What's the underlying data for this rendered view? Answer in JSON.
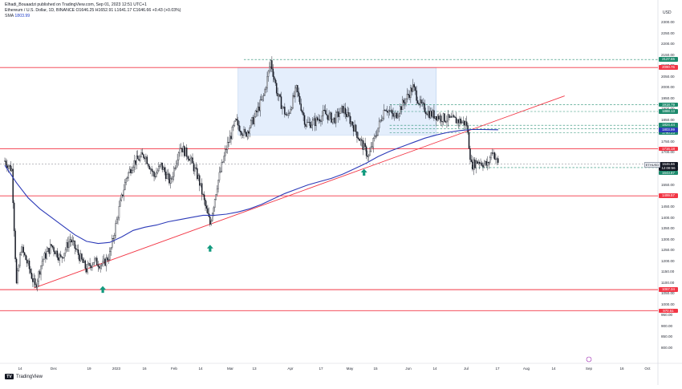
{
  "header": {
    "publisher": "Elhadi_Bouaadzi published on TradingView.com, Sep 01, 2023 12:51 UTC+1",
    "instrument": "Ethereum / U.S. Dollar, 1D, BINANCE  O1646.25  H1652.91  L1641.17  C1646.66  +0.43 (+0.03%)",
    "indicator_label": "SMA",
    "indicator_value": "1803.99"
  },
  "footer": {
    "logo_text": "TradingView",
    "logo_mark": "TV"
  },
  "axis_currency": "USD",
  "symbol_tag": "ETHUSD",
  "colors": {
    "candle": "#131722",
    "support_line": "#f23645",
    "trendline": "#f23645",
    "sma": "#2c3ab8",
    "range_box": "#dbe8fb",
    "target_lines": "#1c8a6c",
    "arrow": "#119a7e",
    "price_dashed": "#787b86"
  },
  "chart_data": {
    "type": "candlestick",
    "ylim": [
      750,
      2350
    ],
    "y_ticks": [
      800,
      850,
      900,
      950,
      1000,
      1050,
      1100,
      1150,
      1200,
      1250,
      1300,
      1350,
      1400,
      1450,
      1500,
      1550,
      1600,
      1650,
      1700,
      1750,
      1800,
      1850,
      1900,
      1950,
      2000,
      2050,
      2100,
      2150,
      2200,
      2250,
      2300
    ],
    "x_ticks": [
      "14",
      "Dec",
      "19",
      "2023",
      "16",
      "Feb",
      "14",
      "Mar",
      "13",
      "Apr",
      "17",
      "May",
      "15",
      "Jun",
      "14",
      "Jul",
      "17",
      "Aug",
      "14",
      "Sep",
      "16",
      "Oct"
    ],
    "horizontal_levels": [
      {
        "value": 2090.76,
        "label": "2090.76",
        "style": "solid",
        "color": "#f23645"
      },
      {
        "value": 1716.18,
        "label": "1716.18",
        "style": "solid",
        "color": "#f23645"
      },
      {
        "value": 1499.57,
        "label": "1499.57",
        "style": "solid",
        "color": "#f23645"
      },
      {
        "value": 1067.34,
        "label": "1067.34",
        "style": "solid",
        "color": "#f23645"
      },
      {
        "value": 970.51,
        "label": "970.51",
        "style": "solid",
        "color": "#f23645"
      }
    ],
    "target_levels": [
      {
        "value": 2127.65,
        "label": "2127.65"
      },
      {
        "value": 1918.79,
        "label": "1918.79"
      },
      {
        "value": 1888.13,
        "label": "1888.13"
      },
      {
        "value": 1824.44,
        "label": "1824.44"
      },
      {
        "value": 1809.37,
        "label": "1809.37"
      },
      {
        "value": 1790.23,
        "label": "1790.23"
      },
      {
        "value": 1629.82,
        "label": "1629.82"
      }
    ],
    "current_price": {
      "value": 1646.66,
      "label": "1646.66",
      "countdown": "12:08:56",
      "secondary": "1643.87"
    },
    "sma_label": {
      "value": 1803.99,
      "label": "1803.99"
    },
    "range_box": {
      "top": 2090,
      "bottom": 1780,
      "from_index": 200,
      "to_index": 370
    },
    "trendline": {
      "from": {
        "index": 25,
        "value": 1075
      },
      "to": {
        "index": 480,
        "value": 1960
      }
    },
    "arrows_up_index": [
      84,
      176,
      308
    ],
    "anchors": [
      [
        0,
        1660
      ],
      [
        6,
        1620
      ],
      [
        10,
        1090
      ],
      [
        14,
        1260
      ],
      [
        20,
        1180
      ],
      [
        26,
        1080
      ],
      [
        32,
        1200
      ],
      [
        40,
        1270
      ],
      [
        48,
        1210
      ],
      [
        56,
        1300
      ],
      [
        64,
        1220
      ],
      [
        70,
        1160
      ],
      [
        76,
        1200
      ],
      [
        84,
        1180
      ],
      [
        90,
        1230
      ],
      [
        98,
        1440
      ],
      [
        104,
        1580
      ],
      [
        110,
        1650
      ],
      [
        120,
        1690
      ],
      [
        128,
        1590
      ],
      [
        134,
        1640
      ],
      [
        142,
        1560
      ],
      [
        150,
        1730
      ],
      [
        158,
        1680
      ],
      [
        166,
        1580
      ],
      [
        172,
        1450
      ],
      [
        176,
        1370
      ],
      [
        182,
        1550
      ],
      [
        190,
        1720
      ],
      [
        198,
        1840
      ],
      [
        206,
        1780
      ],
      [
        214,
        1860
      ],
      [
        222,
        1960
      ],
      [
        228,
        2120
      ],
      [
        234,
        1960
      ],
      [
        242,
        1860
      ],
      [
        250,
        1990
      ],
      [
        258,
        1830
      ],
      [
        266,
        1840
      ],
      [
        274,
        1880
      ],
      [
        282,
        1850
      ],
      [
        290,
        1900
      ],
      [
        298,
        1830
      ],
      [
        306,
        1740
      ],
      [
        312,
        1680
      ],
      [
        318,
        1780
      ],
      [
        326,
        1910
      ],
      [
        334,
        1860
      ],
      [
        342,
        1930
      ],
      [
        350,
        2000
      ],
      [
        356,
        1920
      ],
      [
        364,
        1880
      ],
      [
        374,
        1860
      ],
      [
        382,
        1850
      ],
      [
        390,
        1845
      ],
      [
        396,
        1830
      ],
      [
        400,
        1640
      ],
      [
        406,
        1660
      ],
      [
        414,
        1640
      ],
      [
        418,
        1710
      ],
      [
        423,
        1646
      ]
    ],
    "sma_series": [
      [
        0,
        1640
      ],
      [
        10,
        1560
      ],
      [
        20,
        1490
      ],
      [
        30,
        1440
      ],
      [
        40,
        1400
      ],
      [
        50,
        1360
      ],
      [
        60,
        1320
      ],
      [
        70,
        1290
      ],
      [
        80,
        1280
      ],
      [
        90,
        1285
      ],
      [
        100,
        1310
      ],
      [
        110,
        1340
      ],
      [
        120,
        1355
      ],
      [
        130,
        1365
      ],
      [
        140,
        1380
      ],
      [
        150,
        1390
      ],
      [
        160,
        1400
      ],
      [
        170,
        1410
      ],
      [
        180,
        1410
      ],
      [
        190,
        1415
      ],
      [
        200,
        1425
      ],
      [
        210,
        1440
      ],
      [
        220,
        1460
      ],
      [
        230,
        1485
      ],
      [
        240,
        1510
      ],
      [
        250,
        1530
      ],
      [
        260,
        1550
      ],
      [
        270,
        1565
      ],
      [
        280,
        1580
      ],
      [
        290,
        1600
      ],
      [
        300,
        1625
      ],
      [
        310,
        1650
      ],
      [
        320,
        1680
      ],
      [
        330,
        1705
      ],
      [
        340,
        1725
      ],
      [
        350,
        1745
      ],
      [
        360,
        1765
      ],
      [
        370,
        1780
      ],
      [
        380,
        1792
      ],
      [
        390,
        1800
      ],
      [
        400,
        1805
      ],
      [
        410,
        1805
      ],
      [
        423,
        1804
      ]
    ]
  }
}
